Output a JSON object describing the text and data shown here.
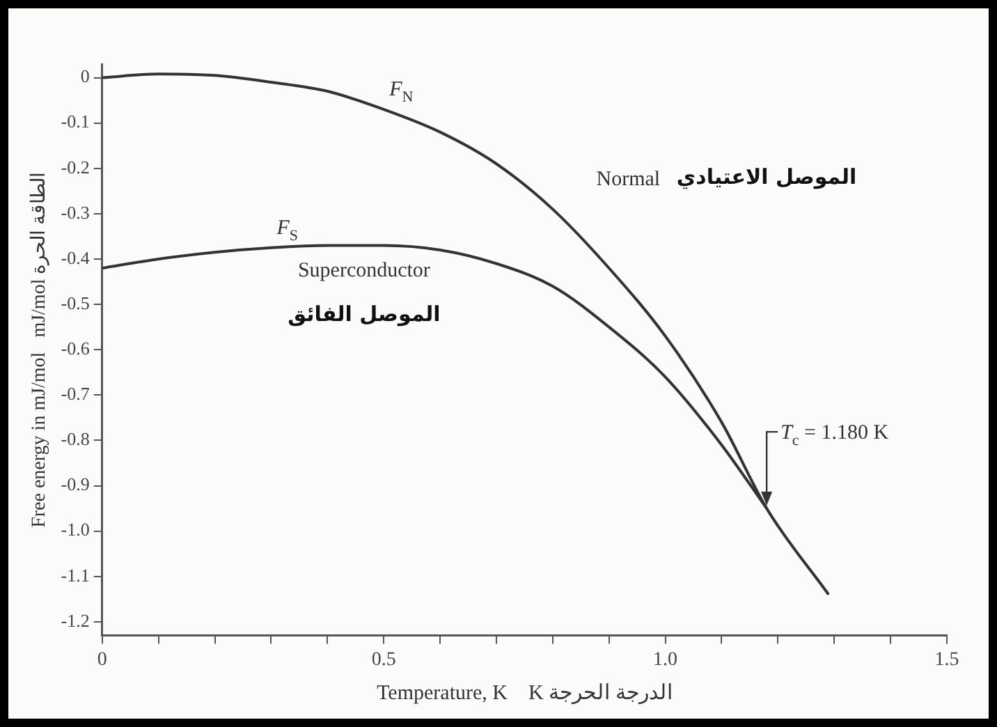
{
  "chart_data": {
    "type": "line",
    "xlabel": "Temperature, K    K الدرجة الحرجة",
    "ylabel": "Free energy in mJ/mol   mJ/mol الطاقة الحرة",
    "series": [
      {
        "name": "F$_{N}$",
        "color": "#333333",
        "x": [
          0,
          0.1,
          0.2,
          0.3,
          0.4,
          0.5,
          0.6,
          0.7,
          0.8,
          0.9,
          1.0,
          1.1,
          1.18,
          1.29
        ],
        "values": [
          0,
          0.008,
          0.005,
          -0.01,
          -0.03,
          -0.07,
          -0.12,
          -0.19,
          -0.29,
          -0.42,
          -0.57,
          -0.76,
          -0.95,
          -1.14
        ]
      },
      {
        "name": "F$_{S}$",
        "color": "#333333",
        "x": [
          0,
          0.1,
          0.2,
          0.3,
          0.4,
          0.5,
          0.6,
          0.7,
          0.8,
          0.9,
          1.0,
          1.1,
          1.18
        ],
        "values": [
          -0.42,
          -0.4,
          -0.385,
          -0.375,
          -0.37,
          -0.37,
          -0.38,
          -0.41,
          -0.46,
          -0.55,
          -0.66,
          -0.81,
          -0.95
        ]
      }
    ],
    "annotations": [
      "Normal",
      "الموصل الاعتيادي",
      "Superconductor",
      "الموصل الفائق",
      {
        "text": "T$_{c}$ = 1.180 K",
        "x": 1.18,
        "y": -0.95
      }
    ],
    "xlim": [
      0,
      1.5
    ],
    "ylim": [
      -1.23,
      0.03
    ],
    "xticks": [
      0,
      {
        "value": 0.1,
        "label": null
      },
      {
        "value": 0.2,
        "label": null
      },
      {
        "value": 0.3,
        "label": null
      },
      {
        "value": 0.4,
        "label": null
      },
      0.5,
      {
        "value": 0.6,
        "label": null
      },
      {
        "value": 0.7,
        "label": null
      },
      {
        "value": 0.8,
        "label": null
      },
      {
        "value": 0.9,
        "label": null
      },
      {
        "value": 1,
        "label": "1.0"
      },
      {
        "value": 1.1,
        "label": null
      },
      {
        "value": 1.2,
        "label": null
      },
      {
        "value": 1.3,
        "label": null
      },
      {
        "value": 1.4,
        "label": null
      },
      1.5
    ],
    "yticks": [
      0,
      -0.1,
      -0.2,
      -0.3,
      -0.4,
      -0.5,
      -0.6,
      -0.7,
      -0.8,
      -0.9,
      {
        "value": -1,
        "label": "-1.0"
      },
      -1.1,
      -1.2
    ],
    "grid": false,
    "legend": false,
    "marker": "none",
    "line_style": "solid"
  }
}
